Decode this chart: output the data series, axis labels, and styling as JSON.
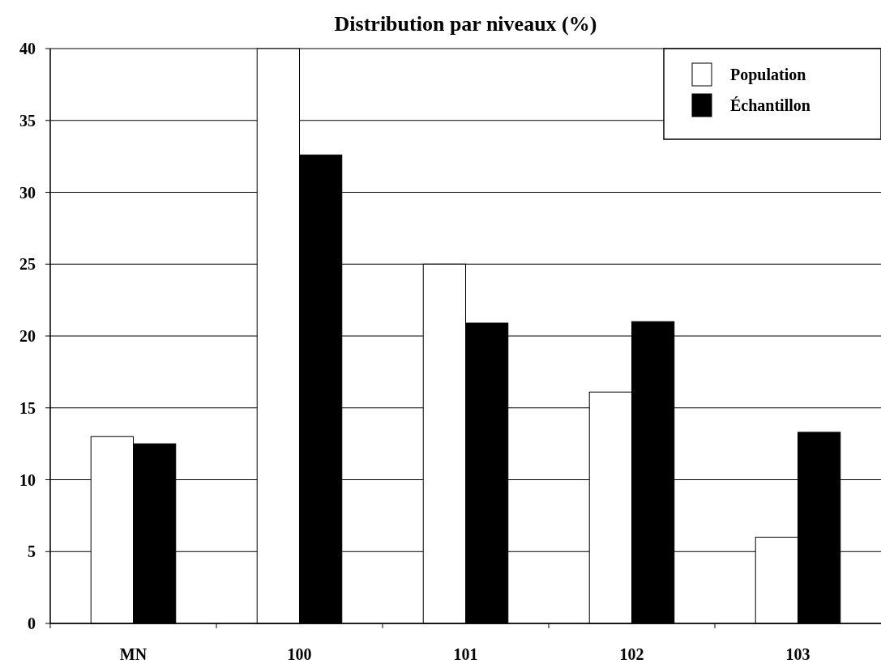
{
  "chart_data": {
    "type": "bar",
    "title": "Distribution par niveaux (%)",
    "categories": [
      "MN",
      "100",
      "101",
      "102",
      "103"
    ],
    "series": [
      {
        "name": "Population",
        "color": "#ffffff",
        "values": [
          13.0,
          40.0,
          25.0,
          16.1,
          6.0
        ]
      },
      {
        "name": "Échantillon",
        "color": "#000000",
        "values": [
          12.5,
          32.6,
          20.9,
          21.0,
          13.3
        ]
      }
    ],
    "ylim": [
      0,
      40
    ],
    "yticks": [
      0,
      5,
      10,
      15,
      20,
      25,
      30,
      35,
      40
    ],
    "grid": "y",
    "legend": "top right"
  }
}
